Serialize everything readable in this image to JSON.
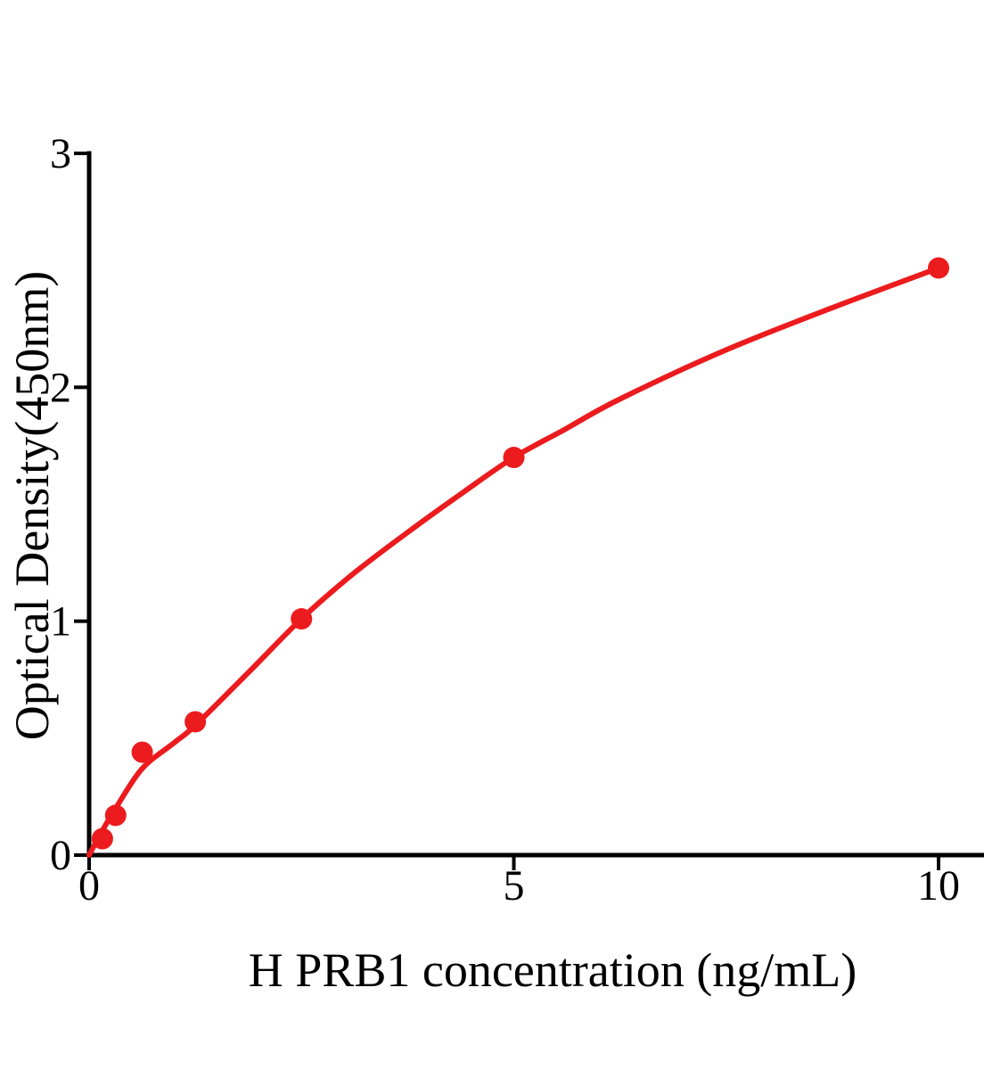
{
  "chart_data": {
    "type": "scatter",
    "title": "",
    "xlabel": "H PRB1 concentration (ng/mL)",
    "ylabel": "Optical Density(450nm)",
    "xlim": [
      0,
      10.55
    ],
    "ylim": [
      0,
      3
    ],
    "grid": false,
    "legend": "none",
    "background_color": "#FFFFFF",
    "axis_color": "#000000",
    "point_color": "#EC1B1E",
    "curve_color": "#EC1B1E",
    "x_ticks": [
      {
        "value": 0,
        "label": "0"
      },
      {
        "value": 5,
        "label": "5"
      },
      {
        "value": 10,
        "label": "10"
      }
    ],
    "y_ticks": [
      {
        "value": 0,
        "label": "0"
      },
      {
        "value": 1,
        "label": "1"
      },
      {
        "value": 2,
        "label": "2"
      },
      {
        "value": 3,
        "label": "3"
      }
    ],
    "points": [
      {
        "x": 0.156,
        "y": 0.07
      },
      {
        "x": 0.3125,
        "y": 0.17
      },
      {
        "x": 0.625,
        "y": 0.44
      },
      {
        "x": 1.25,
        "y": 0.57
      },
      {
        "x": 2.5,
        "y": 1.01
      },
      {
        "x": 5,
        "y": 1.7
      },
      {
        "x": 10,
        "y": 2.51
      }
    ],
    "fit_curve": [
      [
        0,
        0.0
      ],
      [
        0.156,
        0.105
      ],
      [
        0.3125,
        0.2
      ],
      [
        0.625,
        0.37
      ],
      [
        1.0,
        0.48
      ],
      [
        1.25,
        0.555
      ],
      [
        1.9,
        0.79
      ],
      [
        2.5,
        1.01
      ],
      [
        3.1,
        1.2
      ],
      [
        3.75,
        1.38
      ],
      [
        4.4,
        1.55
      ],
      [
        5,
        1.7
      ],
      [
        5.6,
        1.82
      ],
      [
        6.25,
        1.95
      ],
      [
        7.5,
        2.16
      ],
      [
        8.75,
        2.34
      ],
      [
        10,
        2.51
      ]
    ]
  }
}
